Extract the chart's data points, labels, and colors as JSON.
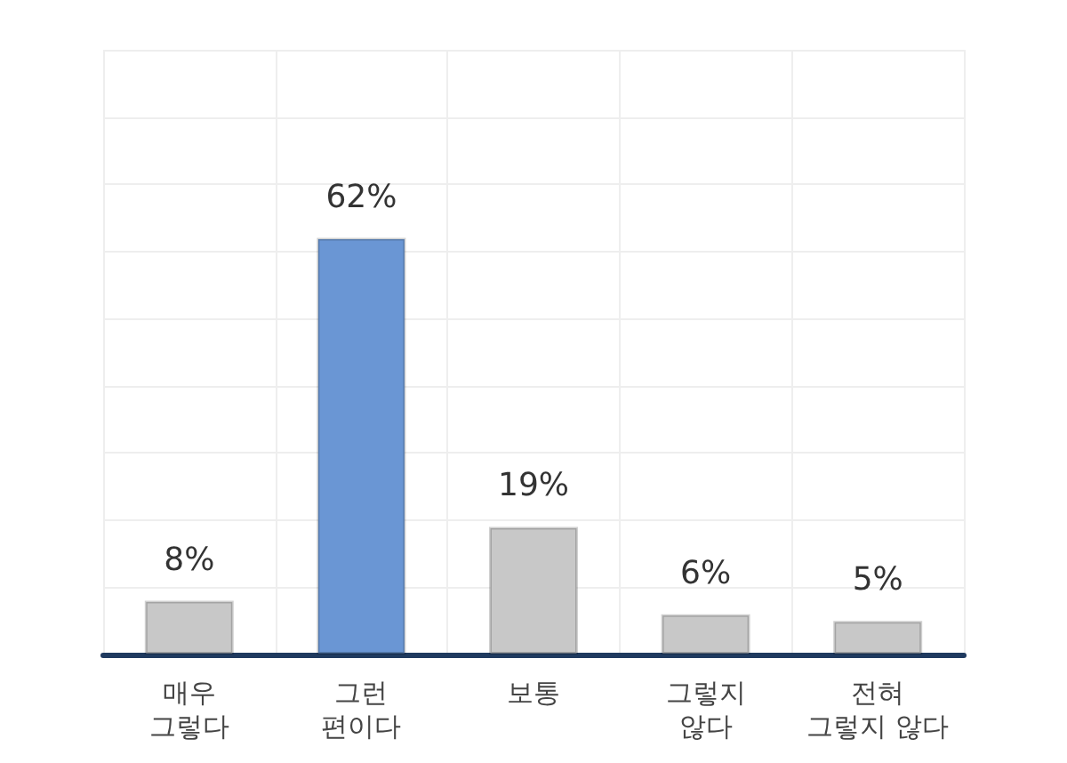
{
  "chart_data": {
    "type": "bar",
    "categories": [
      "매우\n그렇다",
      "그런\n편이다",
      "보통",
      "그렇지\n않다",
      "전혀\n그렇지 않다"
    ],
    "values": [
      8,
      62,
      19,
      6,
      5
    ],
    "colors": [
      "#c8c8c8",
      "#6a96d4",
      "#c8c8c8",
      "#c8c8c8",
      "#c8c8c8"
    ],
    "value_labels": [
      "8%",
      "62%",
      "19%",
      "6%",
      "5%"
    ],
    "ylim": [
      0,
      90
    ],
    "yticks": [
      {
        "value": 0,
        "label": null
      },
      {
        "value": 10,
        "label": null
      },
      {
        "value": 20,
        "label": null
      },
      {
        "value": 30,
        "label": null
      },
      {
        "value": 40,
        "label": null
      },
      {
        "value": 50,
        "label": null
      },
      {
        "value": 60,
        "label": null
      },
      {
        "value": 70,
        "label": null
      },
      {
        "value": 80,
        "label": null
      },
      {
        "value": 90,
        "label": null
      }
    ],
    "tick_labels": "x",
    "grid": true
  }
}
